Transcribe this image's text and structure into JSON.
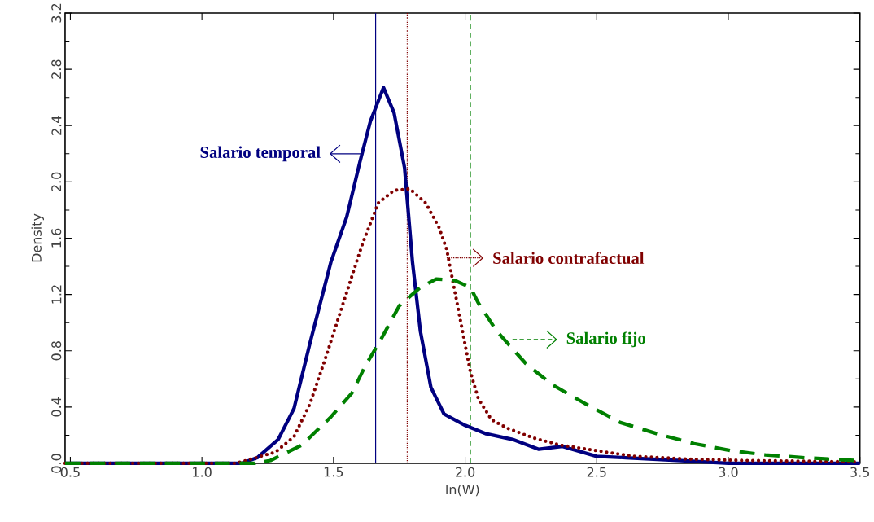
{
  "chart_data": {
    "type": "line",
    "xlabel": "ln(W)",
    "ylabel": "Density",
    "xlim": [
      0.48,
      3.5
    ],
    "ylim": [
      0,
      3.2
    ],
    "xticks": [
      0.5,
      {
        "value": 1,
        "label": "1.0"
      },
      1.5,
      {
        "value": 2,
        "label": "2.0"
      },
      2.5,
      {
        "value": 3,
        "label": "3.0"
      },
      3.5
    ],
    "yticks": [
      {
        "value": 0,
        "label": "0.0"
      },
      0.4,
      0.8,
      1.2,
      1.6,
      {
        "value": 2,
        "label": "2.0"
      },
      2.4,
      2.8,
      3.2
    ],
    "marker": "none",
    "legend": "right",
    "series": [
      {
        "name": "Salario temporal",
        "color": "#000080",
        "line_style": "solid",
        "x": [
          0.48,
          1.15,
          1.21,
          1.29,
          1.35,
          1.41,
          1.45,
          1.49,
          1.55,
          1.6,
          1.64,
          1.69,
          1.73,
          1.77,
          1.8,
          1.83,
          1.87,
          1.92,
          2.0,
          2.08,
          2.18,
          2.28,
          2.37,
          2.5,
          2.61,
          2.82,
          3.0,
          3.5
        ],
        "values": [
          0,
          0,
          0.04,
          0.17,
          0.39,
          0.85,
          1.14,
          1.43,
          1.75,
          2.14,
          2.43,
          2.67,
          2.49,
          2.1,
          1.43,
          0.94,
          0.54,
          0.35,
          0.27,
          0.21,
          0.17,
          0.1,
          0.12,
          0.05,
          0.04,
          0.02,
          0,
          0
        ]
      },
      {
        "name": "Salario contrafactual",
        "color": "#800000",
        "line_style": "dotted",
        "x": [
          0.48,
          1.13,
          1.28,
          1.35,
          1.41,
          1.47,
          1.52,
          1.57,
          1.61,
          1.67,
          1.73,
          1.79,
          1.85,
          1.9,
          1.93,
          1.96,
          1.99,
          2.02,
          2.05,
          2.1,
          2.16,
          2.26,
          2.36,
          2.5,
          2.64,
          2.85,
          3.06,
          3.5
        ],
        "values": [
          0,
          0,
          0.08,
          0.19,
          0.42,
          0.75,
          1.04,
          1.33,
          1.56,
          1.85,
          1.94,
          1.95,
          1.85,
          1.68,
          1.52,
          1.23,
          0.94,
          0.65,
          0.46,
          0.31,
          0.25,
          0.18,
          0.13,
          0.09,
          0.05,
          0.03,
          0.02,
          0.01
        ]
      },
      {
        "name": "Salario fijo",
        "color": "#008000",
        "line_style": "dashed",
        "x": [
          0.48,
          1.2,
          1.26,
          1.38,
          1.49,
          1.57,
          1.62,
          1.68,
          1.75,
          1.83,
          1.89,
          1.96,
          2.02,
          2.05,
          2.12,
          2.23,
          2.33,
          2.46,
          2.59,
          2.73,
          2.87,
          3.01,
          3.14,
          3.29,
          3.48
        ],
        "values": [
          0,
          0,
          0.02,
          0.13,
          0.33,
          0.5,
          0.69,
          0.88,
          1.12,
          1.25,
          1.31,
          1.3,
          1.25,
          1.14,
          0.94,
          0.71,
          0.56,
          0.42,
          0.29,
          0.21,
          0.14,
          0.09,
          0.06,
          0.04,
          0.02
        ]
      }
    ],
    "ref_lines": [
      {
        "axis": "x",
        "value": 1.66,
        "color": "#000080",
        "line_style": "solid"
      },
      {
        "axis": "x",
        "value": 1.78,
        "color": "#800000",
        "line_style": "dotted"
      },
      {
        "axis": "x",
        "value": 2.02,
        "color": "#008000",
        "line_style": "dashed"
      }
    ]
  }
}
